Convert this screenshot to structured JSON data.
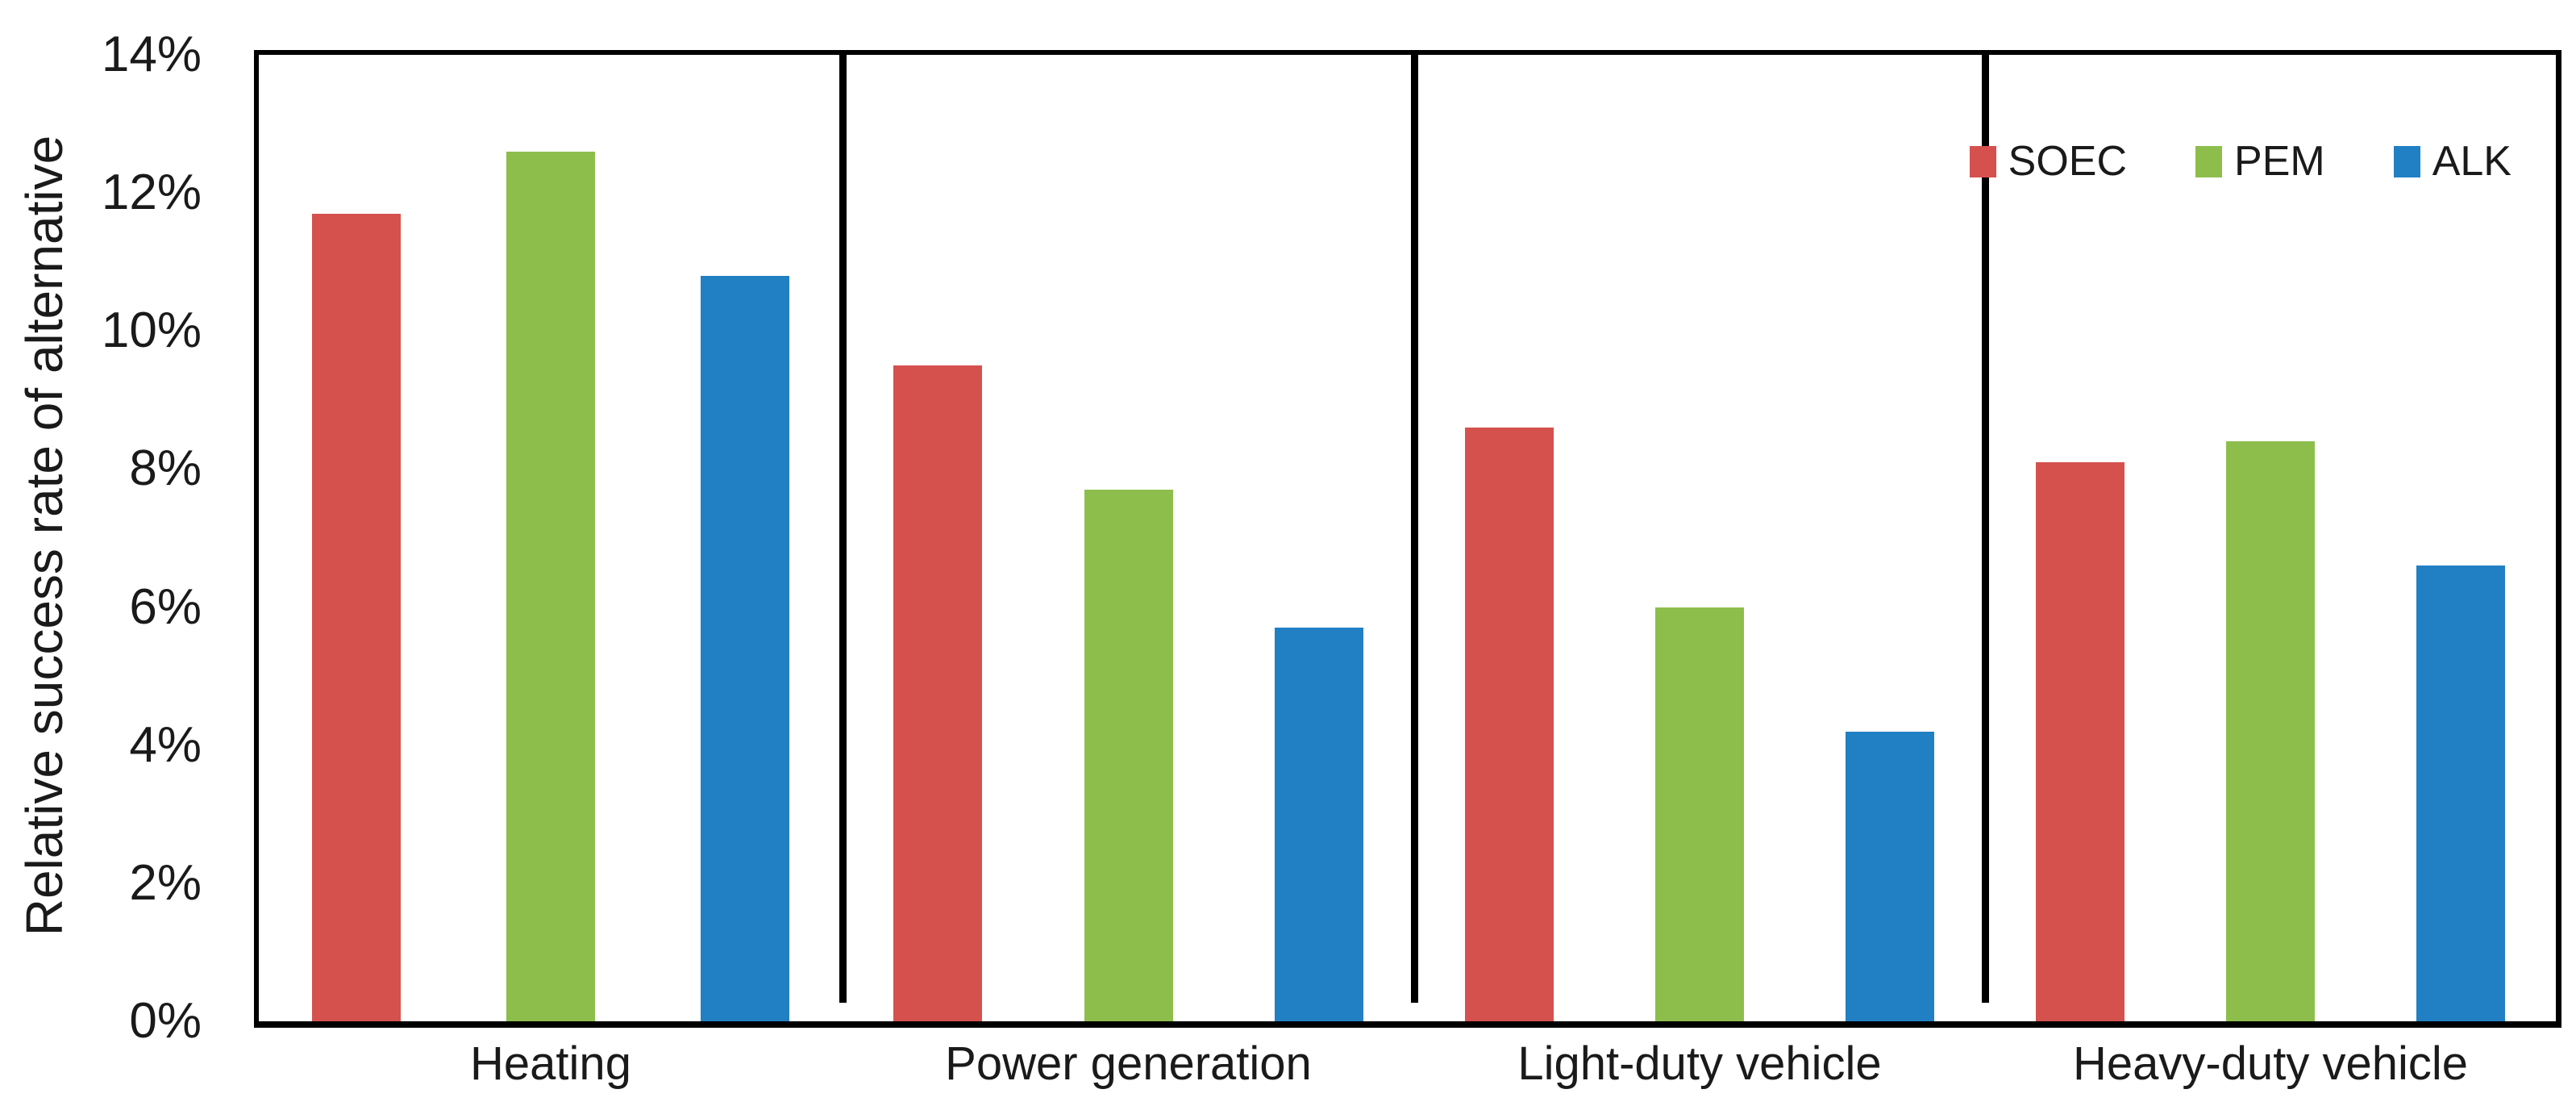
{
  "chart_data": {
    "type": "bar",
    "title": "",
    "xlabel": "",
    "ylabel": "Relative success rate of alternative",
    "categories": [
      "Heating",
      "Power generation",
      "Light-duty vehicle",
      "Heavy-duty vehicle"
    ],
    "series": [
      {
        "name": "SOEC",
        "color": "#d5514e",
        "values": [
          11.7,
          9.5,
          8.6,
          8.1
        ]
      },
      {
        "name": "PEM",
        "color": "#8dbe4c",
        "values": [
          12.6,
          7.7,
          6.0,
          8.4
        ]
      },
      {
        "name": "ALK",
        "color": "#2180c3",
        "values": [
          10.8,
          5.7,
          4.2,
          6.6
        ]
      }
    ],
    "value_unit": "%",
    "ylim": [
      0,
      14
    ],
    "ytick_step": 2,
    "ytick_labels": [
      "0%",
      "2%",
      "4%",
      "6%",
      "8%",
      "10%",
      "12%",
      "14%"
    ],
    "grid": false,
    "legend_position": "top-right-inside",
    "group_dividers": true,
    "divider_color": "#000000",
    "axis_color": "#000000",
    "text_color": "#1a1a1a"
  }
}
